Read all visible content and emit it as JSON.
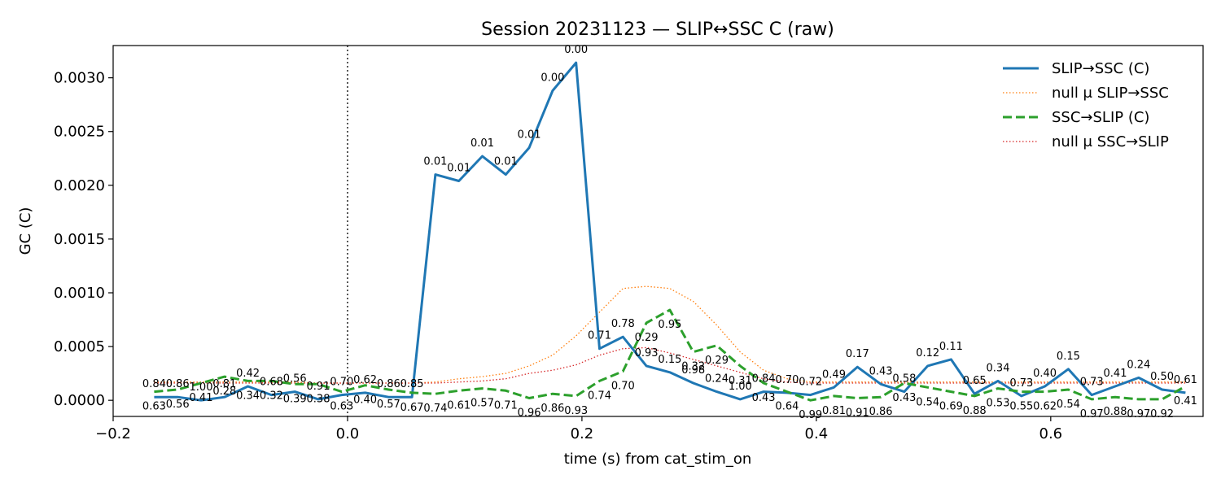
{
  "chart_data": {
    "type": "line",
    "title": "Session 20231123 — SLIP↔SSC C (raw)",
    "xlabel": "time (s) from cat_stim_on",
    "ylabel": "GC (C)",
    "xlim": [
      -0.2,
      0.73
    ],
    "ylim": [
      -0.00015,
      0.0033
    ],
    "xticks": [
      -0.2,
      0.0,
      0.2,
      0.4,
      0.6
    ],
    "xtick_labels": [
      "−0.2",
      "0.0",
      "0.2",
      "0.4",
      "0.6"
    ],
    "yticks": [
      0.0,
      0.0005,
      0.001,
      0.0015,
      0.002,
      0.0025,
      0.003
    ],
    "ytick_labels": [
      "0.0000",
      "0.0005",
      "0.0010",
      "0.0015",
      "0.0020",
      "0.0025",
      "0.0030"
    ],
    "vline_x": 0.0,
    "legend_position": "top-right",
    "x": [
      -0.165,
      -0.145,
      -0.125,
      -0.105,
      -0.085,
      -0.065,
      -0.045,
      -0.025,
      -0.005,
      0.015,
      0.035,
      0.055,
      0.075,
      0.095,
      0.115,
      0.135,
      0.155,
      0.175,
      0.195,
      0.215,
      0.235,
      0.255,
      0.275,
      0.295,
      0.315,
      0.335,
      0.355,
      0.375,
      0.395,
      0.415,
      0.435,
      0.455,
      0.475,
      0.495,
      0.515,
      0.535,
      0.555,
      0.575,
      0.595,
      0.615,
      0.635,
      0.655,
      0.675,
      0.695,
      0.715
    ],
    "series": [
      {
        "name": "SLIP→SSC (C)",
        "color": "#1f77b4",
        "style": "solid",
        "values": [
          3e-05,
          3e-05,
          0.0,
          3e-05,
          0.00013,
          5e-05,
          8e-05,
          1e-05,
          5e-05,
          7e-05,
          3e-05,
          3e-05,
          0.0021,
          0.00204,
          0.00227,
          0.0021,
          0.00235,
          0.00288,
          0.00314,
          0.00048,
          0.00059,
          0.00032,
          0.00026,
          0.00016,
          8e-05,
          1e-05,
          8e-05,
          7e-05,
          5e-05,
          0.00012,
          0.00031,
          0.00015,
          8e-05,
          0.00032,
          0.00038,
          6e-05,
          0.00018,
          4e-05,
          0.00013,
          0.00029,
          5e-05,
          0.00013,
          0.00021,
          0.0001,
          7e-05
        ],
        "labels": [
          "0.84",
          "0.86",
          "1.00",
          "0.81",
          "0.42",
          "0.68",
          "0.56",
          "0.91",
          "0.70",
          "0.62",
          "0.86",
          "0.85",
          "0.01",
          "0.01",
          "0.01",
          "0.01",
          "0.01",
          "0.00",
          "0.00",
          "0.71",
          "0.78",
          "0.93",
          "0.15",
          "0.98",
          "0.24",
          "1.00",
          "0.84",
          "0.70",
          "0.72",
          "0.49",
          "0.17",
          "0.43",
          "0.58",
          "0.12",
          "0.11",
          "0.65",
          "0.34",
          "0.73",
          "0.40",
          "0.15",
          "0.73",
          "0.41",
          "0.24",
          "0.50",
          "0.61"
        ]
      },
      {
        "name": "null μ SLIP→SSC",
        "color": "#ff7f0e",
        "style": "dotted",
        "values": [
          0.00017,
          0.00017,
          0.00017,
          0.00017,
          0.00017,
          0.00017,
          0.00017,
          0.00016,
          0.00016,
          0.00016,
          0.00016,
          0.00016,
          0.00017,
          0.0002,
          0.00022,
          0.00025,
          0.00032,
          0.00042,
          0.0006,
          0.00082,
          0.00104,
          0.00106,
          0.00104,
          0.00092,
          0.0007,
          0.00045,
          0.00028,
          0.0002,
          0.00017,
          0.00017,
          0.00017,
          0.00017,
          0.00017,
          0.00017,
          0.00017,
          0.00017,
          0.00017,
          0.00017,
          0.00017,
          0.00017,
          0.00017,
          0.00017,
          0.00017,
          0.00017,
          0.00017
        ]
      },
      {
        "name": "SSC→SLIP (C)",
        "color": "#2ca02c",
        "style": "dashed",
        "values": [
          8e-05,
          0.0001,
          0.00016,
          0.00022,
          0.00018,
          0.00018,
          0.00015,
          0.00015,
          8e-05,
          0.00014,
          0.0001,
          7e-05,
          6e-05,
          9e-05,
          0.00011,
          9e-05,
          2e-05,
          6e-05,
          4e-05,
          0.00018,
          0.00027,
          0.00072,
          0.00084,
          0.00045,
          0.00051,
          0.00032,
          0.00016,
          8e-05,
          0.0,
          4e-05,
          2e-05,
          3e-05,
          0.00016,
          0.00012,
          8e-05,
          4e-05,
          0.00011,
          8e-05,
          8e-05,
          0.0001,
          1e-05,
          3e-05,
          1e-05,
          1e-05,
          0.00013
        ],
        "labels": [
          "0.63",
          "0.56",
          "0.41",
          "0.28",
          "0.34",
          "0.32",
          "0.39",
          "0.38",
          "0.63",
          "0.40",
          "0.57",
          "0.67",
          "0.74",
          "0.61",
          "0.57",
          "0.71",
          "0.96",
          "0.86",
          "0.93",
          "0.74",
          "0.70",
          "0.29",
          "0.95",
          "0.32",
          "0.29",
          "0.31",
          "0.43",
          "0.64",
          "0.99",
          "0.81",
          "0.91",
          "0.86",
          "0.43",
          "0.54",
          "0.69",
          "0.88",
          "0.53",
          "0.55",
          "0.62",
          "0.54",
          "0.97",
          "0.88",
          "0.97",
          "0.92",
          "0.41"
        ]
      },
      {
        "name": "null μ SSC→SLIP",
        "color": "#d62728",
        "style": "dotted",
        "values": [
          0.00016,
          0.00016,
          0.00016,
          0.00016,
          0.00016,
          0.00016,
          0.00016,
          0.00016,
          0.00016,
          0.00016,
          0.00016,
          0.00016,
          0.00016,
          0.00017,
          0.00018,
          0.0002,
          0.00025,
          0.00028,
          0.00033,
          0.00042,
          0.00048,
          0.00049,
          0.00044,
          0.00038,
          0.00032,
          0.00026,
          0.0002,
          0.00017,
          0.00016,
          0.00016,
          0.00016,
          0.00016,
          0.00016,
          0.00016,
          0.00016,
          0.00016,
          0.00016,
          0.00016,
          0.00016,
          0.00016,
          0.00016,
          0.00016,
          0.00016,
          0.00016,
          0.00016
        ]
      }
    ]
  }
}
